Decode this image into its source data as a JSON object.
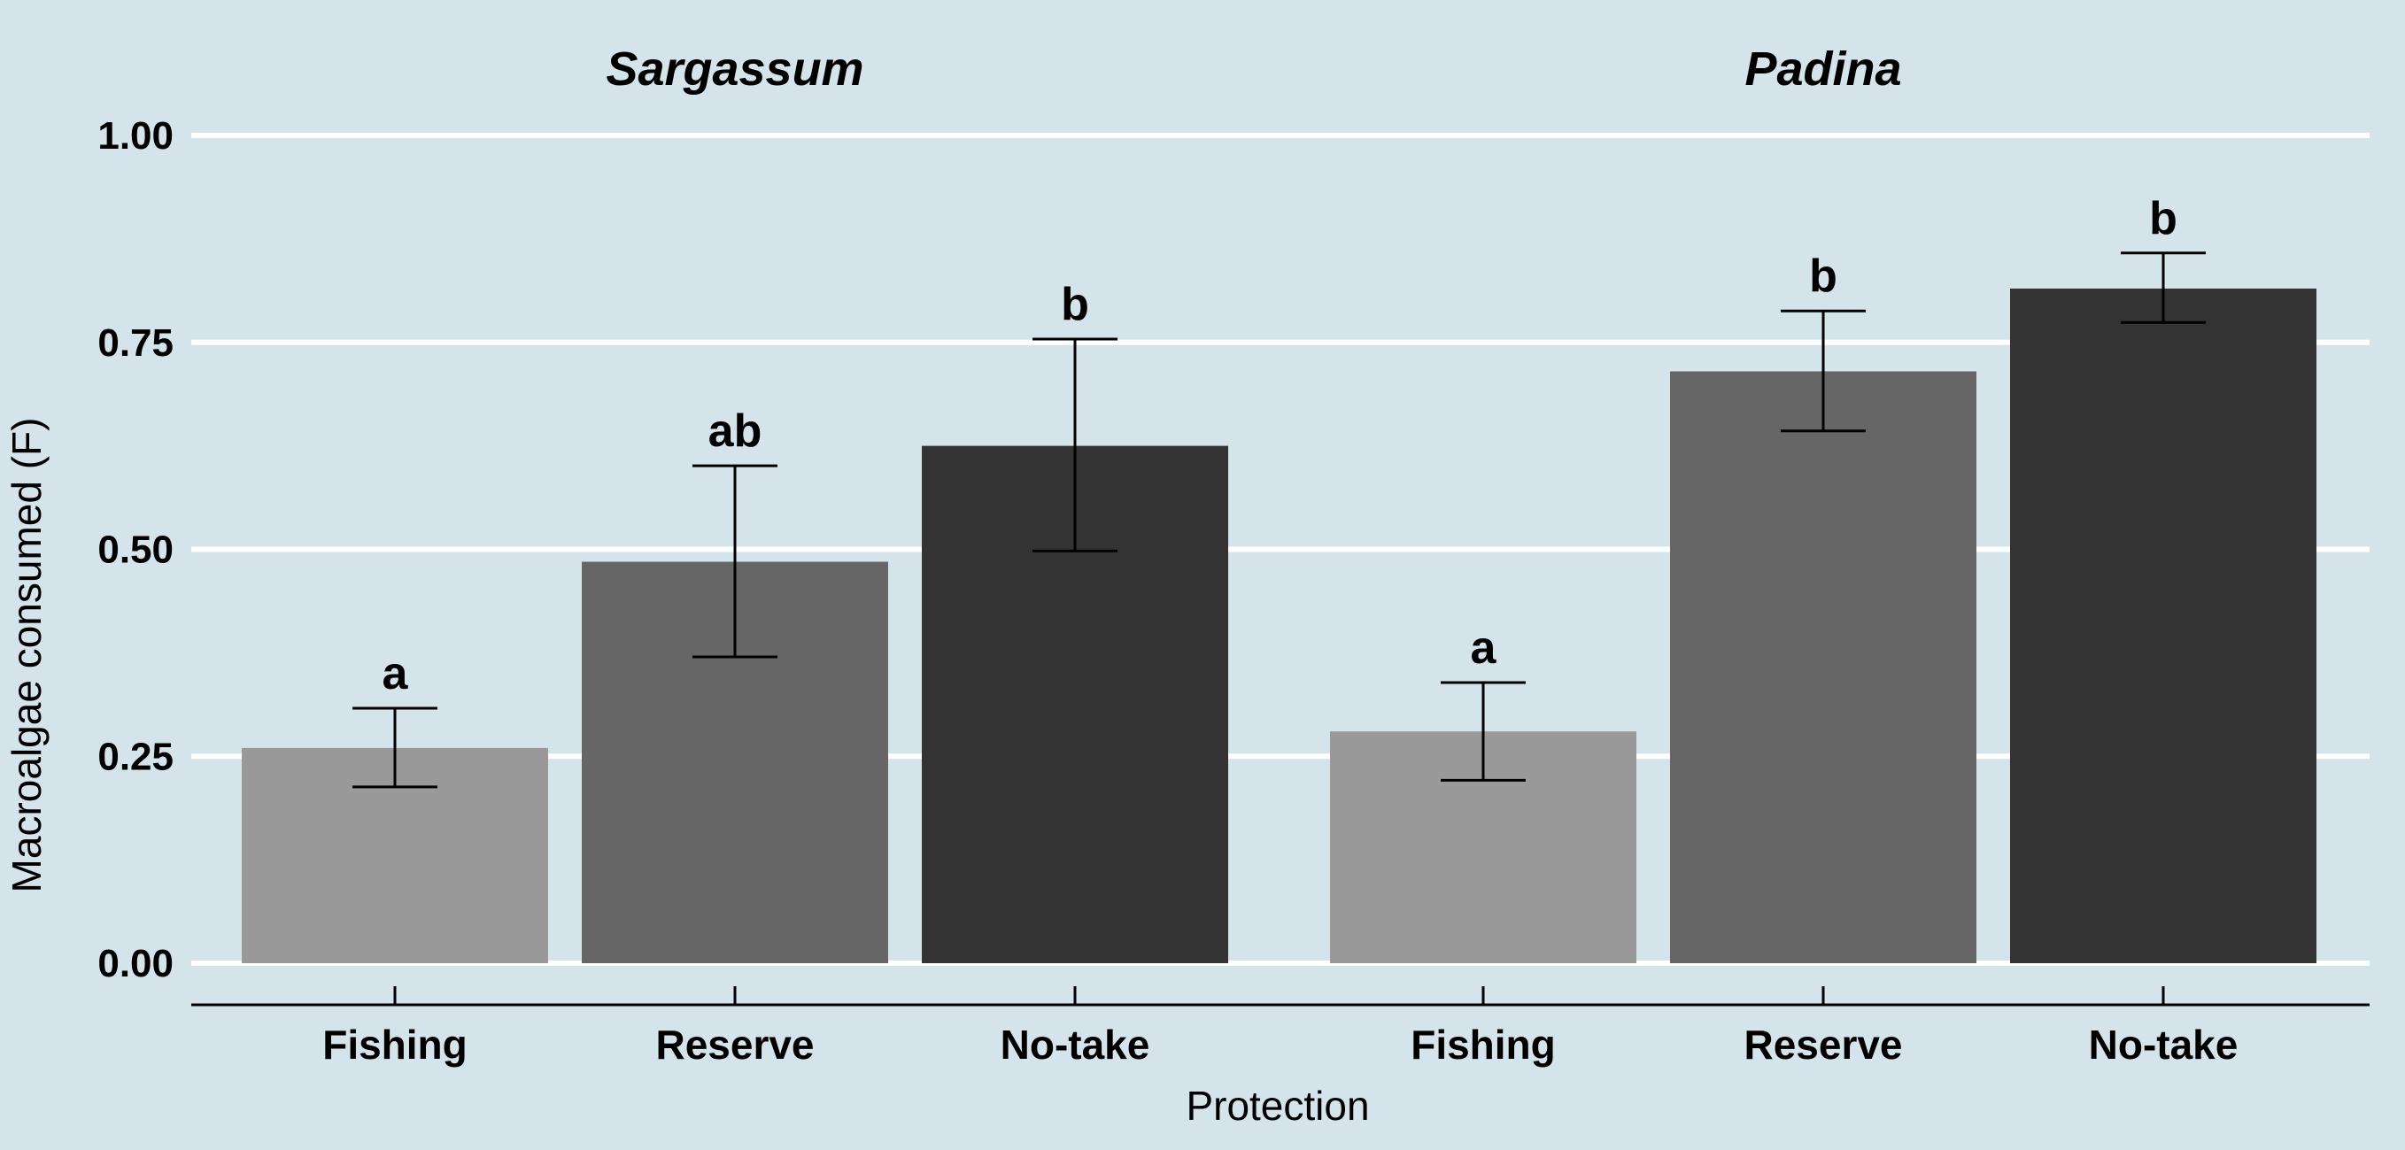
{
  "chart_data": {
    "type": "bar",
    "xlabel": "Protection",
    "ylabel": "Macroalgae consumed (F)",
    "ylim": [
      0,
      1
    ],
    "yticks": [
      0,
      0.25,
      0.5,
      0.75,
      1.0
    ],
    "ytick_labels": [
      "0.00",
      "0.25",
      "0.50",
      "0.75",
      "1.00"
    ],
    "grid": "horizontal",
    "colors": {
      "Fishing": "#999999",
      "Reserve": "#666666",
      "No-take": "#333333",
      "background": "#d5e4eb",
      "grid": "#ffffff"
    },
    "categories": [
      "Fishing",
      "Reserve",
      "No-take"
    ],
    "panels": [
      {
        "title": "Sargassum",
        "values": [
          0.26,
          0.485,
          0.625
        ],
        "error_low": [
          0.213,
          0.37,
          0.498
        ],
        "error_high": [
          0.308,
          0.601,
          0.754
        ],
        "labels": [
          "a",
          "ab",
          "b"
        ]
      },
      {
        "title": "Padina",
        "values": [
          0.28,
          0.715,
          0.815
        ],
        "error_low": [
          0.221,
          0.643,
          0.774
        ],
        "error_high": [
          0.339,
          0.788,
          0.858
        ],
        "labels": [
          "a",
          "b",
          "b"
        ]
      }
    ]
  }
}
